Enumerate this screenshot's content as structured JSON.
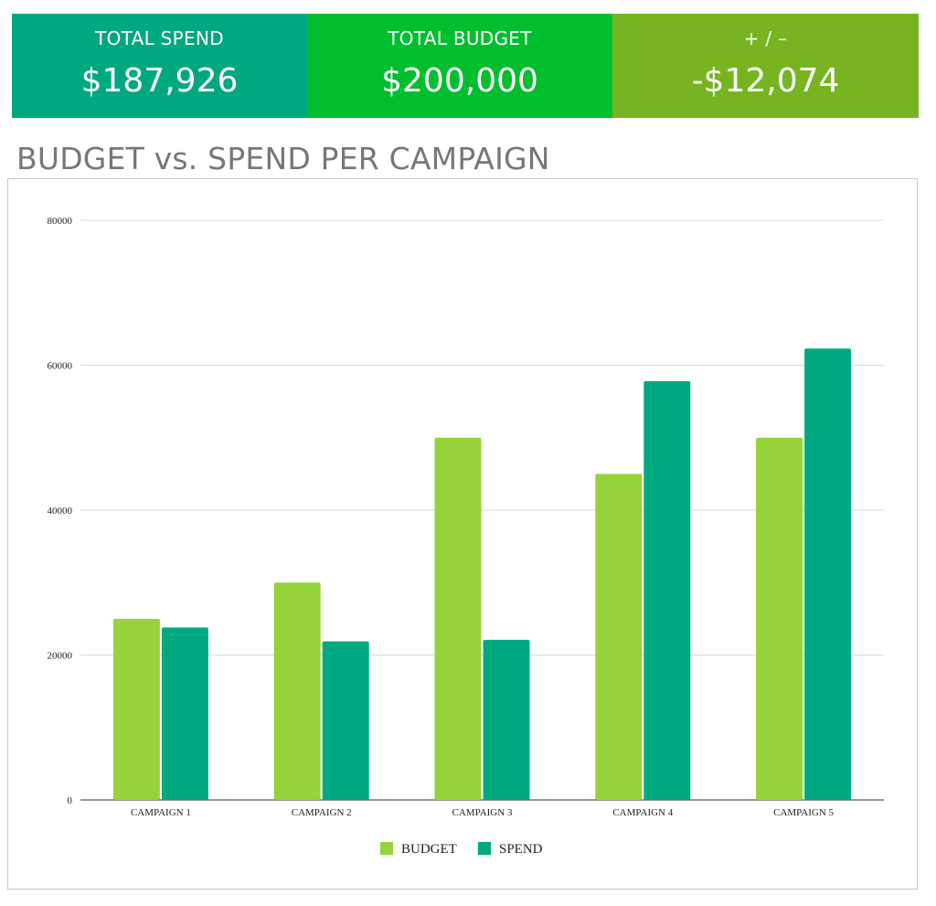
{
  "kpis": {
    "spend": {
      "label": "TOTAL SPEND",
      "value": "$187,926"
    },
    "budget": {
      "label": "TOTAL BUDGET",
      "value": "$200,000"
    },
    "diff": {
      "label": "+ / –",
      "value": "-$12,074"
    }
  },
  "colors": {
    "budget": "#94d43a",
    "spend": "#00a97f",
    "kpi_spend": "#00a880",
    "kpi_budget": "#00bf2f",
    "kpi_diff": "#76b521"
  },
  "chart_data": {
    "type": "bar",
    "title": "BUDGET vs. SPEND PER CAMPAIGN",
    "categories": [
      "CAMPAIGN 1",
      "CAMPAIGN 2",
      "CAMPAIGN 3",
      "CAMPAIGN 4",
      "CAMPAIGN 5"
    ],
    "series": [
      {
        "name": "BUDGET",
        "values": [
          25000,
          30000,
          50000,
          45000,
          50000
        ]
      },
      {
        "name": "SPEND",
        "values": [
          23800,
          21900,
          22100,
          57800,
          62300
        ]
      }
    ],
    "yticks": [
      "0",
      "20000",
      "40000",
      "60000",
      "80000"
    ],
    "ylim": [
      0,
      80000
    ],
    "grid": true,
    "legend": "bottom"
  }
}
